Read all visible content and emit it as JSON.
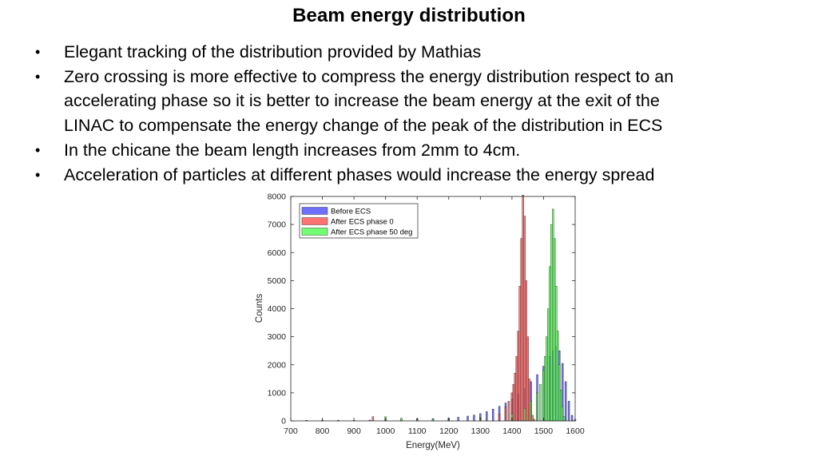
{
  "slide": {
    "title": "Beam energy distribution",
    "bullets": [
      "Elegant tracking of the distribution provided by Mathias",
      "Zero crossing  is more effective to compress the energy distribution respect to an",
      "accelerating phase so it is better to  increase the beam energy at the exit of the",
      "LINAC to compensate the energy change of the peak of the distribution in ECS",
      "In the chicane the beam length increases from 2mm to 4cm.",
      "Acceleration of particles at different phases would increase the energy spread"
    ],
    "bullet_marks": [
      true,
      true,
      false,
      false,
      true,
      true
    ],
    "bullet_glyph": "•"
  },
  "chart_data": {
    "type": "bar",
    "xlabel": "Energy(MeV)",
    "ylabel": "Counts",
    "xlim": [
      700,
      1600
    ],
    "ylim": [
      0,
      8000
    ],
    "xticks": [
      700,
      800,
      900,
      1000,
      1100,
      1200,
      1300,
      1400,
      1500,
      1600
    ],
    "yticks": [
      0,
      1000,
      2000,
      3000,
      4000,
      5000,
      6000,
      7000,
      8000
    ],
    "grid": false,
    "legend_position": "top-left",
    "series": [
      {
        "name": "Before ECS",
        "color": "#4a4aff",
        "bins": [
          [
            750,
            20
          ],
          [
            800,
            30
          ],
          [
            850,
            25
          ],
          [
            900,
            20
          ],
          [
            950,
            30
          ],
          [
            1000,
            40
          ],
          [
            1050,
            50
          ],
          [
            1100,
            60
          ],
          [
            1150,
            80
          ],
          [
            1200,
            100
          ],
          [
            1230,
            130
          ],
          [
            1260,
            170
          ],
          [
            1280,
            210
          ],
          [
            1300,
            260
          ],
          [
            1320,
            330
          ],
          [
            1340,
            420
          ],
          [
            1360,
            520
          ],
          [
            1380,
            640
          ],
          [
            1400,
            780
          ],
          [
            1420,
            950
          ],
          [
            1440,
            1150
          ],
          [
            1460,
            1400
          ],
          [
            1480,
            1650
          ],
          [
            1500,
            1950
          ],
          [
            1520,
            2300
          ],
          [
            1530,
            2500
          ],
          [
            1540,
            2650
          ],
          [
            1550,
            2500
          ],
          [
            1560,
            2050
          ],
          [
            1570,
            1400
          ],
          [
            1580,
            700
          ],
          [
            1590,
            200
          ],
          [
            1600,
            40
          ]
        ]
      },
      {
        "name": "After ECS phase 0",
        "color": "#ff5050",
        "bins": [
          [
            960,
            150
          ],
          [
            1000,
            50
          ],
          [
            1100,
            40
          ],
          [
            1200,
            60
          ],
          [
            1300,
            120
          ],
          [
            1360,
            250
          ],
          [
            1380,
            500
          ],
          [
            1390,
            700
          ],
          [
            1400,
            1000
          ],
          [
            1405,
            1300
          ],
          [
            1410,
            1700
          ],
          [
            1415,
            2300
          ],
          [
            1420,
            3200
          ],
          [
            1425,
            4800
          ],
          [
            1430,
            6500
          ],
          [
            1435,
            8050
          ],
          [
            1440,
            7300
          ],
          [
            1445,
            5000
          ],
          [
            1450,
            3000
          ],
          [
            1455,
            1500
          ],
          [
            1460,
            600
          ],
          [
            1465,
            200
          ],
          [
            1470,
            60
          ]
        ]
      },
      {
        "name": "After ECS phase 50 deg",
        "color": "#50ff50",
        "bins": [
          [
            1000,
            150
          ],
          [
            1050,
            100
          ],
          [
            1100,
            80
          ],
          [
            1150,
            60
          ],
          [
            1200,
            50
          ],
          [
            1300,
            80
          ],
          [
            1400,
            250
          ],
          [
            1440,
            450
          ],
          [
            1460,
            700
          ],
          [
            1480,
            1000
          ],
          [
            1490,
            1300
          ],
          [
            1500,
            1800
          ],
          [
            1505,
            2300
          ],
          [
            1510,
            3000
          ],
          [
            1515,
            4000
          ],
          [
            1520,
            5500
          ],
          [
            1525,
            7000
          ],
          [
            1530,
            7550
          ],
          [
            1535,
            6500
          ],
          [
            1540,
            4800
          ],
          [
            1545,
            3200
          ],
          [
            1550,
            2000
          ],
          [
            1555,
            1100
          ],
          [
            1560,
            500
          ],
          [
            1565,
            150
          ]
        ]
      }
    ]
  }
}
